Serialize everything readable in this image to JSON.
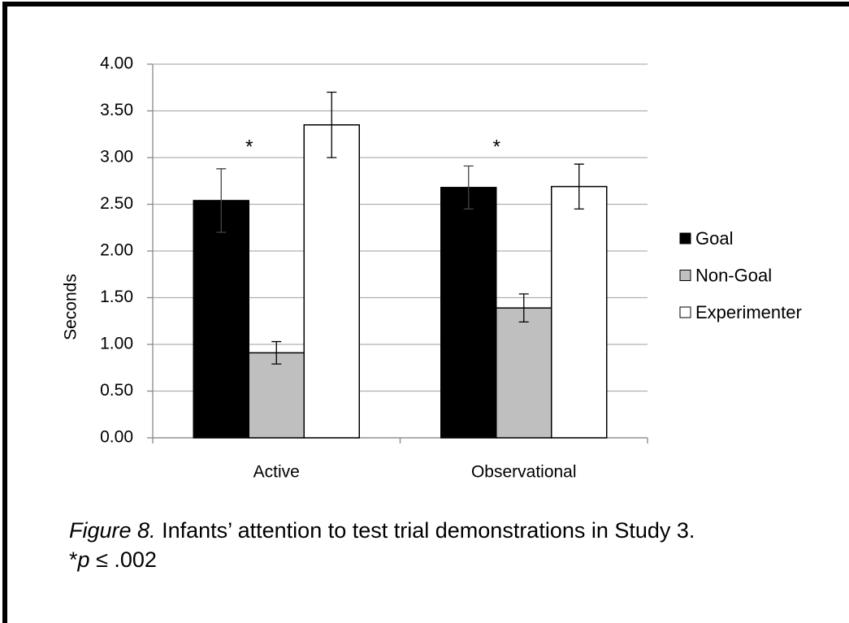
{
  "chart_data": {
    "type": "bar",
    "y_label": "Seconds",
    "categories": [
      "Active",
      "Observational"
    ],
    "series": [
      {
        "name": "Goal",
        "color": "#000000",
        "values": [
          2.54,
          2.68
        ],
        "errors": [
          0.34,
          0.23
        ]
      },
      {
        "name": "Non-Goal",
        "color": "#bfbfbf",
        "values": [
          0.91,
          1.39
        ],
        "errors": [
          0.12,
          0.15
        ]
      },
      {
        "name": "Experimenter",
        "color": "#ffffff",
        "values": [
          3.35,
          2.69
        ],
        "errors": [
          0.35,
          0.24
        ]
      }
    ],
    "annotations": [
      "*",
      "*"
    ],
    "ylim": [
      0,
      4
    ],
    "yticks": [
      {
        "value": 0,
        "label": "0.00"
      },
      {
        "value": 0.5,
        "label": "0.50"
      },
      {
        "value": 1,
        "label": "1.00"
      },
      {
        "value": 1.5,
        "label": "1.50"
      },
      {
        "value": 2,
        "label": "2.00"
      },
      {
        "value": 2.5,
        "label": "2.50"
      },
      {
        "value": 3,
        "label": "3.00"
      },
      {
        "value": 3.5,
        "label": "3.50"
      },
      {
        "value": 4,
        "label": "4.00"
      }
    ],
    "grid": true,
    "legend": "right",
    "caption_label": "Figure 8.",
    "caption_text": "Infants’ attention to test trial demonstrations in Study 3.",
    "note_star": "*",
    "note_p": "p",
    "note_text": "≤ .002"
  }
}
